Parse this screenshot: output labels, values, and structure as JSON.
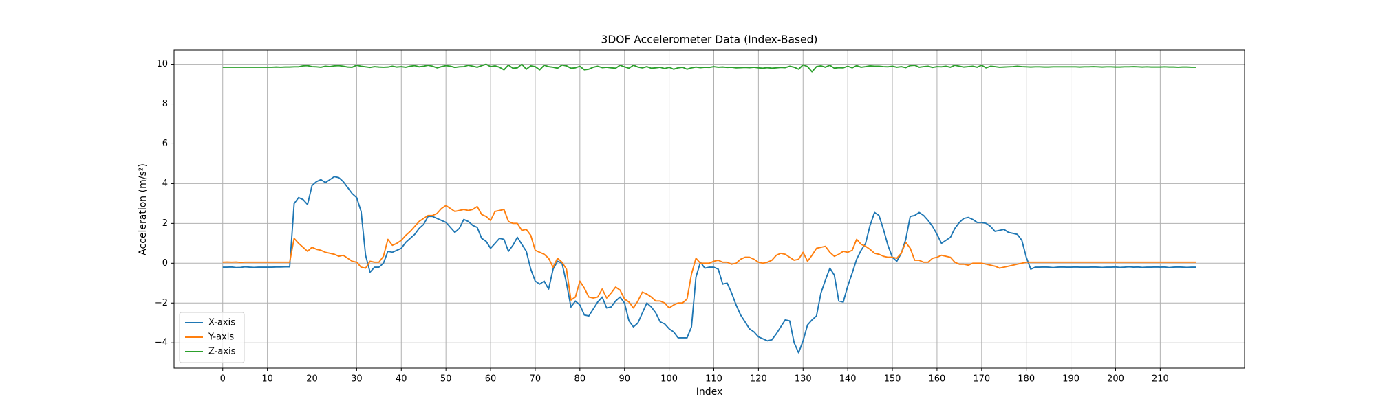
{
  "chart_data": {
    "type": "line",
    "title": "3DOF Accelerometer Data (Index-Based)",
    "x_label": "Index",
    "y_label": "Acceleration (m/s²)",
    "x": [
      0,
      1,
      2,
      3,
      4,
      5,
      6,
      7,
      8,
      9,
      10,
      11,
      12,
      13,
      14,
      15,
      16,
      17,
      18,
      19,
      20,
      21,
      22,
      23,
      24,
      25,
      26,
      27,
      28,
      29,
      30,
      31,
      32,
      33,
      34,
      35,
      36,
      37,
      38,
      39,
      40,
      41,
      42,
      43,
      44,
      45,
      46,
      47,
      48,
      49,
      50,
      51,
      52,
      53,
      54,
      55,
      56,
      57,
      58,
      59,
      60,
      61,
      62,
      63,
      64,
      65,
      66,
      67,
      68,
      69,
      70,
      71,
      72,
      73,
      74,
      75,
      76,
      77,
      78,
      79,
      80,
      81,
      82,
      83,
      84,
      85,
      86,
      87,
      88,
      89,
      90,
      91,
      92,
      93,
      94,
      95,
      96,
      97,
      98,
      99,
      100,
      101,
      102,
      103,
      104,
      105,
      106,
      107,
      108,
      109,
      110,
      111,
      112,
      113,
      114,
      115,
      116,
      117,
      118,
      119,
      120,
      121,
      122,
      123,
      124,
      125,
      126,
      127,
      128,
      129,
      130,
      131,
      132,
      133,
      134,
      135,
      136,
      137,
      138,
      139,
      140,
      141,
      142,
      143,
      144,
      145,
      146,
      147,
      148,
      149,
      150,
      151,
      152,
      153,
      154,
      155,
      156,
      157,
      158,
      159,
      160,
      161,
      162,
      163,
      164,
      165,
      166,
      167,
      168,
      169,
      170,
      171,
      172,
      173,
      174,
      175,
      176,
      177,
      178,
      179,
      180,
      181,
      182,
      183,
      184,
      185,
      186,
      187,
      188,
      189,
      190,
      191,
      192,
      193,
      194,
      195,
      196,
      197,
      198,
      199,
      200,
      201,
      202,
      203,
      204,
      205,
      206,
      207,
      208,
      209,
      210,
      211,
      212,
      213,
      214,
      215,
      216,
      217,
      218
    ],
    "series": [
      {
        "name": "X-axis",
        "color": "#1f77b4",
        "values": [
          -0.2,
          -0.2,
          -0.19,
          -0.22,
          -0.21,
          -0.18,
          -0.2,
          -0.21,
          -0.2,
          -0.2,
          -0.2,
          -0.2,
          -0.19,
          -0.19,
          -0.18,
          -0.18,
          3.0,
          3.3,
          3.2,
          2.95,
          3.9,
          4.1,
          4.2,
          4.05,
          4.2,
          4.35,
          4.3,
          4.1,
          3.8,
          3.5,
          3.3,
          2.6,
          0.4,
          -0.45,
          -0.2,
          -0.2,
          0.0,
          0.6,
          0.55,
          0.65,
          0.75,
          1.05,
          1.25,
          1.45,
          1.75,
          1.95,
          2.35,
          2.35,
          2.25,
          2.15,
          2.05,
          1.8,
          1.55,
          1.75,
          2.2,
          2.1,
          1.9,
          1.8,
          1.25,
          1.1,
          0.75,
          1.0,
          1.25,
          1.2,
          0.6,
          0.9,
          1.3,
          0.95,
          0.6,
          -0.3,
          -0.9,
          -1.05,
          -0.9,
          -1.3,
          -0.3,
          0.1,
          0.0,
          -1.0,
          -2.2,
          -1.9,
          -2.1,
          -2.6,
          -2.65,
          -2.3,
          -1.95,
          -1.7,
          -2.25,
          -2.2,
          -1.9,
          -1.7,
          -2.0,
          -2.9,
          -3.2,
          -3.0,
          -2.5,
          -2.0,
          -2.2,
          -2.5,
          -2.95,
          -3.05,
          -3.3,
          -3.45,
          -3.75,
          -3.75,
          -3.75,
          -3.2,
          -0.7,
          0.05,
          -0.25,
          -0.2,
          -0.2,
          -0.3,
          -1.05,
          -1.0,
          -1.5,
          -2.1,
          -2.6,
          -2.95,
          -3.3,
          -3.45,
          -3.7,
          -3.8,
          -3.9,
          -3.85,
          -3.55,
          -3.2,
          -2.85,
          -2.9,
          -4.0,
          -4.5,
          -3.9,
          -3.1,
          -2.85,
          -2.65,
          -1.5,
          -0.85,
          -0.25,
          -0.6,
          -1.9,
          -1.95,
          -1.15,
          -0.5,
          0.2,
          0.65,
          1.0,
          1.9,
          2.55,
          2.4,
          1.7,
          0.9,
          0.3,
          0.1,
          0.5,
          1.2,
          2.35,
          2.4,
          2.55,
          2.4,
          2.15,
          1.85,
          1.45,
          1.0,
          1.15,
          1.3,
          1.75,
          2.05,
          2.25,
          2.3,
          2.2,
          2.05,
          2.05,
          2.0,
          1.85,
          1.6,
          1.65,
          1.7,
          1.55,
          1.5,
          1.45,
          1.15,
          0.3,
          -0.3,
          -0.2,
          -0.2,
          -0.19,
          -0.2,
          -0.22,
          -0.2,
          -0.19,
          -0.2,
          -0.2,
          -0.19,
          -0.2,
          -0.2,
          -0.2,
          -0.19,
          -0.2,
          -0.21,
          -0.2,
          -0.2,
          -0.19,
          -0.21,
          -0.2,
          -0.18,
          -0.2,
          -0.19,
          -0.21,
          -0.2,
          -0.2,
          -0.19,
          -0.2,
          -0.19,
          -0.22,
          -0.2,
          -0.19,
          -0.2,
          -0.21,
          -0.2,
          -0.2
        ]
      },
      {
        "name": "Y-axis",
        "color": "#ff7f0e",
        "values": [
          0.05,
          0.06,
          0.05,
          0.06,
          0.04,
          0.05,
          0.05,
          0.05,
          0.05,
          0.05,
          0.05,
          0.05,
          0.05,
          0.05,
          0.05,
          0.05,
          1.25,
          1.0,
          0.8,
          0.6,
          0.8,
          0.7,
          0.65,
          0.55,
          0.5,
          0.45,
          0.35,
          0.4,
          0.25,
          0.1,
          0.05,
          -0.2,
          -0.25,
          0.1,
          0.05,
          0.05,
          0.35,
          1.2,
          0.9,
          1.0,
          1.15,
          1.4,
          1.6,
          1.85,
          2.1,
          2.25,
          2.4,
          2.4,
          2.5,
          2.75,
          2.9,
          2.75,
          2.6,
          2.65,
          2.7,
          2.65,
          2.7,
          2.85,
          2.45,
          2.35,
          2.15,
          2.6,
          2.65,
          2.7,
          2.1,
          2.0,
          2.0,
          1.65,
          1.7,
          1.4,
          0.65,
          0.55,
          0.45,
          0.25,
          -0.2,
          0.25,
          0.05,
          -0.3,
          -1.85,
          -1.7,
          -0.9,
          -1.25,
          -1.7,
          -1.75,
          -1.7,
          -1.3,
          -1.75,
          -1.5,
          -1.2,
          -1.35,
          -1.8,
          -1.95,
          -2.25,
          -1.9,
          -1.45,
          -1.55,
          -1.7,
          -1.9,
          -1.9,
          -2.0,
          -2.25,
          -2.1,
          -2.0,
          -2.0,
          -1.8,
          -0.55,
          0.25,
          0.0,
          0.0,
          0.0,
          0.1,
          0.15,
          0.05,
          0.05,
          -0.05,
          0.0,
          0.2,
          0.3,
          0.3,
          0.2,
          0.05,
          0.0,
          0.05,
          0.15,
          0.4,
          0.5,
          0.45,
          0.3,
          0.15,
          0.2,
          0.55,
          0.1,
          0.4,
          0.75,
          0.8,
          0.85,
          0.55,
          0.35,
          0.45,
          0.6,
          0.55,
          0.65,
          1.2,
          0.95,
          0.85,
          0.7,
          0.5,
          0.45,
          0.35,
          0.3,
          0.3,
          0.25,
          0.5,
          1.05,
          0.75,
          0.15,
          0.15,
          0.05,
          0.05,
          0.25,
          0.3,
          0.4,
          0.35,
          0.3,
          0.05,
          -0.05,
          -0.05,
          -0.1,
          0.0,
          0.0,
          0.0,
          -0.05,
          -0.1,
          -0.15,
          -0.25,
          -0.2,
          -0.15,
          -0.1,
          -0.05,
          0.0,
          0.05,
          0.05,
          0.05,
          0.05,
          0.05,
          0.05,
          0.05,
          0.05,
          0.05,
          0.05,
          0.05,
          0.05,
          0.05,
          0.05,
          0.05,
          0.05,
          0.05,
          0.05,
          0.05,
          0.05,
          0.05,
          0.05,
          0.05,
          0.05,
          0.05,
          0.05,
          0.05,
          0.05,
          0.05,
          0.05,
          0.05,
          0.05,
          0.05,
          0.05,
          0.05,
          0.05,
          0.05,
          0.05,
          0.05
        ]
      },
      {
        "name": "Z-axis",
        "color": "#2ca02c",
        "values": [
          9.85,
          9.85,
          9.85,
          9.85,
          9.85,
          9.85,
          9.85,
          9.85,
          9.85,
          9.85,
          9.85,
          9.85,
          9.86,
          9.85,
          9.86,
          9.86,
          9.87,
          9.87,
          9.92,
          9.93,
          9.88,
          9.87,
          9.85,
          9.9,
          9.88,
          9.92,
          9.93,
          9.9,
          9.86,
          9.85,
          9.95,
          9.9,
          9.87,
          9.84,
          9.88,
          9.86,
          9.85,
          9.86,
          9.9,
          9.86,
          9.88,
          9.85,
          9.9,
          9.93,
          9.87,
          9.9,
          9.95,
          9.9,
          9.82,
          9.88,
          9.93,
          9.9,
          9.84,
          9.87,
          9.88,
          9.95,
          9.9,
          9.85,
          9.93,
          10.0,
          9.88,
          9.92,
          9.85,
          9.72,
          9.96,
          9.8,
          9.82,
          10.0,
          9.75,
          9.92,
          9.88,
          9.72,
          9.95,
          9.88,
          9.85,
          9.8,
          9.96,
          9.92,
          9.8,
          9.82,
          9.9,
          9.72,
          9.75,
          9.85,
          9.9,
          9.83,
          9.85,
          9.82,
          9.8,
          9.95,
          9.87,
          9.8,
          9.95,
          9.86,
          9.82,
          9.88,
          9.8,
          9.82,
          9.85,
          9.78,
          9.85,
          9.75,
          9.82,
          9.85,
          9.75,
          9.82,
          9.86,
          9.83,
          9.85,
          9.84,
          9.88,
          9.85,
          9.86,
          9.84,
          9.85,
          9.82,
          9.83,
          9.84,
          9.83,
          9.85,
          9.82,
          9.8,
          9.83,
          9.8,
          9.82,
          9.84,
          9.83,
          9.9,
          9.85,
          9.75,
          9.97,
          9.88,
          9.62,
          9.88,
          9.92,
          9.85,
          9.95,
          9.8,
          9.83,
          9.82,
          9.9,
          9.82,
          9.93,
          9.85,
          9.88,
          9.92,
          9.9,
          9.9,
          9.88,
          9.87,
          9.9,
          9.85,
          9.88,
          9.83,
          9.93,
          9.95,
          9.85,
          9.88,
          9.9,
          9.84,
          9.88,
          9.87,
          9.9,
          9.85,
          9.95,
          9.9,
          9.86,
          9.88,
          9.9,
          9.85,
          9.95,
          9.82,
          9.9,
          9.88,
          9.85,
          9.86,
          9.87,
          9.88,
          9.9,
          9.88,
          9.87,
          9.86,
          9.87,
          9.87,
          9.86,
          9.86,
          9.87,
          9.87,
          9.87,
          9.87,
          9.87,
          9.87,
          9.86,
          9.87,
          9.87,
          9.88,
          9.87,
          9.86,
          9.87,
          9.87,
          9.86,
          9.86,
          9.87,
          9.87,
          9.88,
          9.87,
          9.86,
          9.87,
          9.86,
          9.86,
          9.86,
          9.87,
          9.86,
          9.86,
          9.85,
          9.86,
          9.86,
          9.85,
          9.85
        ]
      }
    ],
    "xlim": [
      -10.9,
      228.9
    ],
    "ylim": [
      -5.27,
      10.71
    ],
    "xticks": [
      0,
      10,
      20,
      30,
      40,
      50,
      60,
      70,
      80,
      90,
      100,
      110,
      120,
      130,
      140,
      150,
      160,
      170,
      180,
      190,
      200,
      210
    ],
    "yticks": [
      {
        "value": -4,
        "label": "−4"
      },
      {
        "value": -2,
        "label": "−2"
      },
      0,
      2,
      4,
      6,
      8,
      10
    ],
    "grid": true,
    "legend": "lower left"
  }
}
